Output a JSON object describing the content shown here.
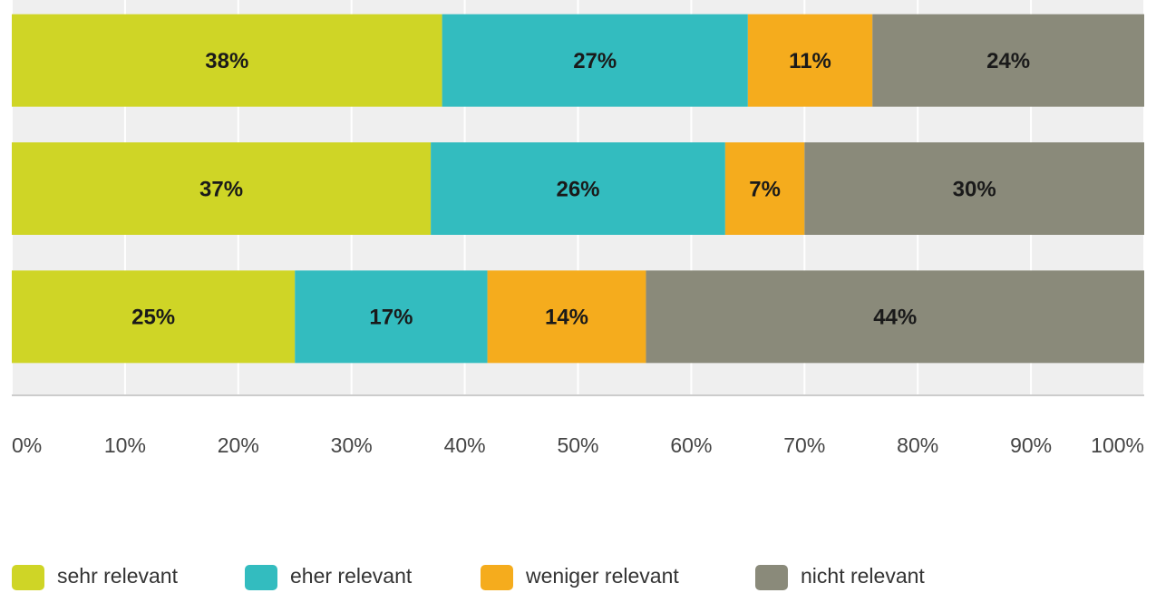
{
  "chart_data": {
    "type": "stacked-bar-horizontal",
    "categories": [
      null,
      null,
      null
    ],
    "series": [
      {
        "name": "sehr relevant",
        "color": "#cfd526",
        "values": [
          38,
          37,
          25
        ],
        "value_labels": [
          "38%",
          "37%",
          "25%"
        ]
      },
      {
        "name": "eher relevant",
        "color": "#33bcbf",
        "values": [
          27,
          26,
          17
        ],
        "value_labels": [
          "27%",
          "26%",
          "17%"
        ]
      },
      {
        "name": "weniger relevant",
        "color": "#f5ac1d",
        "values": [
          11,
          7,
          14
        ],
        "value_labels": [
          "11%",
          "7%",
          "14%"
        ]
      },
      {
        "name": "nicht relevant",
        "color": "#8a8a7a",
        "values": [
          24,
          30,
          44
        ],
        "value_labels": [
          "24%",
          "30%",
          "44%"
        ]
      }
    ],
    "xlim": [
      0,
      100
    ],
    "xticks": [
      {
        "value": 0,
        "label": "0%"
      },
      {
        "value": 10,
        "label": "10%"
      },
      {
        "value": 20,
        "label": "20%"
      },
      {
        "value": 30,
        "label": "30%"
      },
      {
        "value": 40,
        "label": "40%"
      },
      {
        "value": 50,
        "label": "50%"
      },
      {
        "value": 60,
        "label": "60%"
      },
      {
        "value": 70,
        "label": "70%"
      },
      {
        "value": 80,
        "label": "80%"
      },
      {
        "value": 90,
        "label": "90%"
      },
      {
        "value": 100,
        "label": "100%"
      }
    ],
    "grid": true,
    "legend": "bottom"
  }
}
